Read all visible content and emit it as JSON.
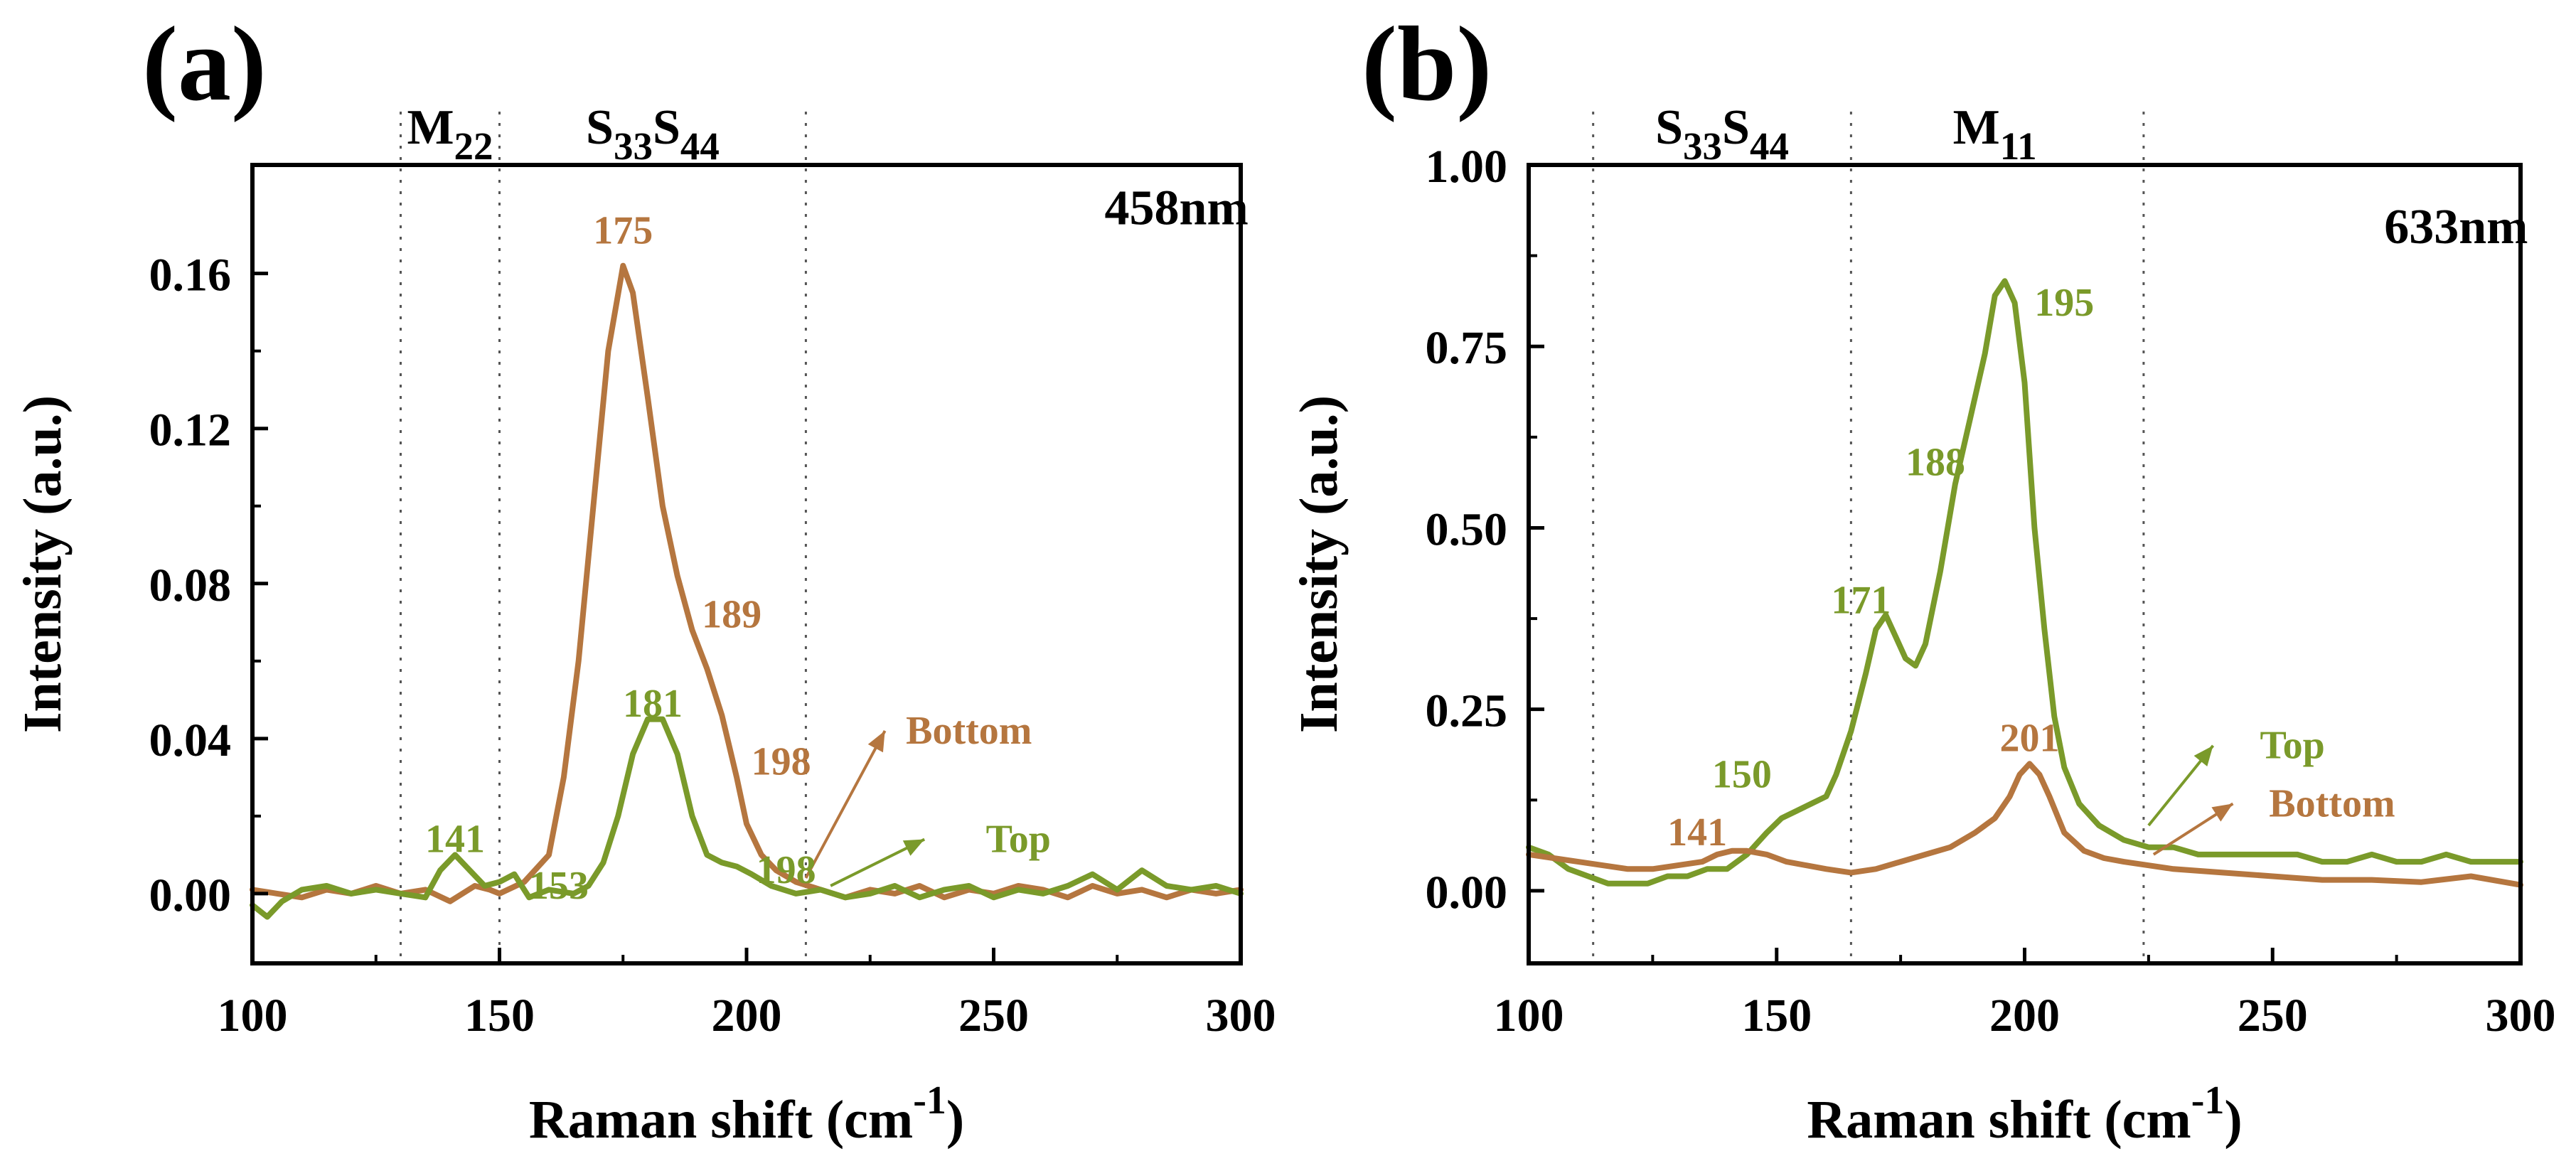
{
  "figure": {
    "panel_labels": [
      "(a)",
      "(b)"
    ]
  },
  "colors": {
    "bottom": "#b5763f",
    "top": "#7a9a2a",
    "axis": "#000000",
    "guide": "#555555"
  },
  "chart_data": [
    {
      "type": "line",
      "panel": "(a)",
      "wavelength_label": "458nm",
      "xlabel": "Raman shift (cm",
      "xlabel_sup": "-1",
      "xlabel_close": ")",
      "ylabel": "Intensity (a.u.)",
      "xlim": [
        100,
        300
      ],
      "ylim": [
        -0.018,
        0.188
      ],
      "xticks": [
        100,
        150,
        200,
        250,
        300
      ],
      "xtick_labels": [
        "100",
        "150",
        "200",
        "250",
        "300"
      ],
      "yticks": [
        0.0,
        0.04,
        0.08,
        0.12,
        0.16
      ],
      "ytick_labels": [
        "0.00",
        "0.04",
        "0.08",
        "0.12",
        "0.16"
      ],
      "guides": [
        130,
        150,
        212
      ],
      "regions": [
        {
          "base": "M",
          "sub": "22",
          "x": 140
        },
        {
          "base": "S",
          "sub": "33",
          "base2": "S",
          "sub2": "44",
          "x": 181
        }
      ],
      "series": [
        {
          "name": "Bottom",
          "color_key": "bottom",
          "x": [
            100,
            105,
            110,
            115,
            120,
            125,
            130,
            135,
            140,
            145,
            148,
            150,
            155,
            160,
            163,
            166,
            169,
            172,
            175,
            177,
            180,
            183,
            186,
            189,
            192,
            195,
            198,
            200,
            203,
            206,
            210,
            215,
            220,
            225,
            230,
            235,
            240,
            245,
            250,
            255,
            260,
            265,
            270,
            275,
            280,
            285,
            290,
            295,
            300
          ],
          "y": [
            0.001,
            0.0,
            -0.001,
            0.001,
            0.0,
            0.002,
            0.0,
            0.001,
            -0.002,
            0.002,
            0.001,
            0.0,
            0.003,
            0.01,
            0.03,
            0.06,
            0.1,
            0.14,
            0.162,
            0.155,
            0.128,
            0.1,
            0.082,
            0.068,
            0.058,
            0.046,
            0.03,
            0.018,
            0.01,
            0.006,
            0.003,
            0.001,
            -0.001,
            0.001,
            0.0,
            0.002,
            -0.001,
            0.001,
            0.0,
            0.002,
            0.001,
            -0.001,
            0.002,
            0.0,
            0.001,
            -0.001,
            0.001,
            0.0,
            0.001
          ]
        },
        {
          "name": "Top",
          "color_key": "top",
          "x": [
            100,
            103,
            106,
            110,
            115,
            120,
            125,
            130,
            135,
            138,
            141,
            144,
            147,
            150,
            153,
            156,
            160,
            165,
            168,
            171,
            174,
            177,
            180,
            183,
            186,
            189,
            192,
            195,
            198,
            201,
            205,
            210,
            215,
            220,
            225,
            230,
            235,
            240,
            245,
            250,
            255,
            260,
            265,
            270,
            275,
            280,
            285,
            290,
            295,
            300
          ],
          "y": [
            -0.003,
            -0.006,
            -0.002,
            0.001,
            0.002,
            0.0,
            0.001,
            0.0,
            -0.001,
            0.006,
            0.01,
            0.006,
            0.002,
            0.003,
            0.005,
            -0.001,
            0.001,
            0.0,
            0.002,
            0.008,
            0.02,
            0.036,
            0.045,
            0.045,
            0.036,
            0.02,
            0.01,
            0.008,
            0.007,
            0.005,
            0.002,
            0.0,
            0.001,
            -0.001,
            0.0,
            0.002,
            -0.001,
            0.001,
            0.002,
            -0.001,
            0.001,
            0.0,
            0.002,
            0.005,
            0.001,
            0.006,
            0.002,
            0.001,
            0.002,
            0.0
          ]
        }
      ],
      "annotations": [
        {
          "text": "175",
          "x": 175,
          "y": 0.171,
          "color_key": "bottom"
        },
        {
          "text": "189",
          "x": 197,
          "y": 0.072,
          "color_key": "bottom"
        },
        {
          "text": "198",
          "x": 207,
          "y": 0.034,
          "color_key": "bottom"
        },
        {
          "text": "141",
          "x": 141,
          "y": 0.014,
          "color_key": "top"
        },
        {
          "text": "181",
          "x": 181,
          "y": 0.049,
          "color_key": "top"
        },
        {
          "text": "153",
          "x": 162,
          "y": 0.002,
          "color_key": "top"
        },
        {
          "text": "198",
          "x": 208,
          "y": 0.006,
          "color_key": "top"
        },
        {
          "text": "458nm",
          "x": 287,
          "y": 0.176,
          "color_key": "axis",
          "size": "large"
        }
      ],
      "arrows": [
        {
          "name": "Bottom",
          "color_key": "bottom",
          "from": [
            212,
            0.004
          ],
          "to": [
            228,
            0.042
          ],
          "label_at": [
            245,
            0.042
          ]
        },
        {
          "name": "Top",
          "color_key": "top",
          "from": [
            217,
            0.002
          ],
          "to": [
            236,
            0.014
          ],
          "label_at": [
            255,
            0.014
          ]
        }
      ]
    },
    {
      "type": "line",
      "panel": "(b)",
      "wavelength_label": "633nm",
      "xlabel": "Raman shift (cm",
      "xlabel_sup": "-1",
      "xlabel_close": ")",
      "ylabel": "Intensity (a.u.)",
      "xlim": [
        100,
        300
      ],
      "ylim": [
        -0.1,
        1.0
      ],
      "xticks": [
        100,
        150,
        200,
        250,
        300
      ],
      "xtick_labels": [
        "100",
        "150",
        "200",
        "250",
        "300"
      ],
      "yticks": [
        0.0,
        0.25,
        0.5,
        0.75,
        1.0
      ],
      "ytick_labels": [
        "0.00",
        "0.25",
        "0.50",
        "0.75",
        "1.00"
      ],
      "guides": [
        113,
        165,
        224
      ],
      "regions": [
        {
          "base": "S",
          "sub": "33",
          "base2": "S",
          "sub2": "44",
          "x": 139
        },
        {
          "base": "M",
          "sub": "11",
          "x": 194
        }
      ],
      "series": [
        {
          "name": "Top",
          "color_key": "top",
          "x": [
            100,
            104,
            108,
            112,
            116,
            120,
            124,
            128,
            132,
            136,
            140,
            144,
            148,
            151,
            154,
            157,
            160,
            162,
            165,
            168,
            170,
            172,
            174,
            176,
            178,
            180,
            183,
            186,
            189,
            192,
            194,
            196,
            198,
            200,
            202,
            204,
            206,
            208,
            211,
            215,
            220,
            225,
            230,
            235,
            240,
            245,
            250,
            255,
            260,
            265,
            270,
            275,
            280,
            285,
            290,
            295,
            300
          ],
          "y": [
            0.06,
            0.05,
            0.03,
            0.02,
            0.01,
            0.01,
            0.01,
            0.02,
            0.02,
            0.03,
            0.03,
            0.05,
            0.08,
            0.1,
            0.11,
            0.12,
            0.13,
            0.16,
            0.22,
            0.3,
            0.36,
            0.38,
            0.35,
            0.32,
            0.31,
            0.34,
            0.44,
            0.56,
            0.65,
            0.74,
            0.82,
            0.84,
            0.81,
            0.7,
            0.5,
            0.36,
            0.24,
            0.17,
            0.12,
            0.09,
            0.07,
            0.06,
            0.06,
            0.05,
            0.05,
            0.05,
            0.05,
            0.05,
            0.04,
            0.04,
            0.05,
            0.04,
            0.04,
            0.05,
            0.04,
            0.04,
            0.04
          ]
        },
        {
          "name": "Bottom",
          "color_key": "bottom",
          "x": [
            100,
            105,
            110,
            115,
            120,
            125,
            130,
            135,
            138,
            141,
            144,
            148,
            152,
            156,
            160,
            165,
            170,
            175,
            180,
            185,
            190,
            194,
            197,
            199,
            201,
            203,
            205,
            208,
            212,
            216,
            220,
            225,
            230,
            240,
            250,
            260,
            270,
            280,
            290,
            300
          ],
          "y": [
            0.05,
            0.045,
            0.04,
            0.035,
            0.03,
            0.03,
            0.035,
            0.04,
            0.05,
            0.055,
            0.055,
            0.05,
            0.04,
            0.035,
            0.03,
            0.025,
            0.03,
            0.04,
            0.05,
            0.06,
            0.08,
            0.1,
            0.13,
            0.16,
            0.175,
            0.16,
            0.13,
            0.08,
            0.055,
            0.045,
            0.04,
            0.035,
            0.03,
            0.025,
            0.02,
            0.015,
            0.015,
            0.012,
            0.02,
            0.008
          ]
        }
      ],
      "annotations": [
        {
          "text": "195",
          "x": 208,
          "y": 0.81,
          "color_key": "top"
        },
        {
          "text": "188",
          "x": 182,
          "y": 0.59,
          "color_key": "top"
        },
        {
          "text": "171",
          "x": 167,
          "y": 0.4,
          "color_key": "top"
        },
        {
          "text": "150",
          "x": 143,
          "y": 0.16,
          "color_key": "top"
        },
        {
          "text": "201",
          "x": 201,
          "y": 0.21,
          "color_key": "bottom"
        },
        {
          "text": "141",
          "x": 134,
          "y": 0.08,
          "color_key": "bottom"
        },
        {
          "text": "633nm",
          "x": 287,
          "y": 0.91,
          "color_key": "axis",
          "size": "large"
        }
      ],
      "arrows": [
        {
          "name": "Top",
          "color_key": "top",
          "from": [
            225,
            0.09
          ],
          "to": [
            238,
            0.2
          ],
          "label_at": [
            254,
            0.2
          ]
        },
        {
          "name": "Bottom",
          "color_key": "bottom",
          "from": [
            226,
            0.05
          ],
          "to": [
            242,
            0.12
          ],
          "label_at": [
            262,
            0.12
          ]
        }
      ]
    }
  ]
}
